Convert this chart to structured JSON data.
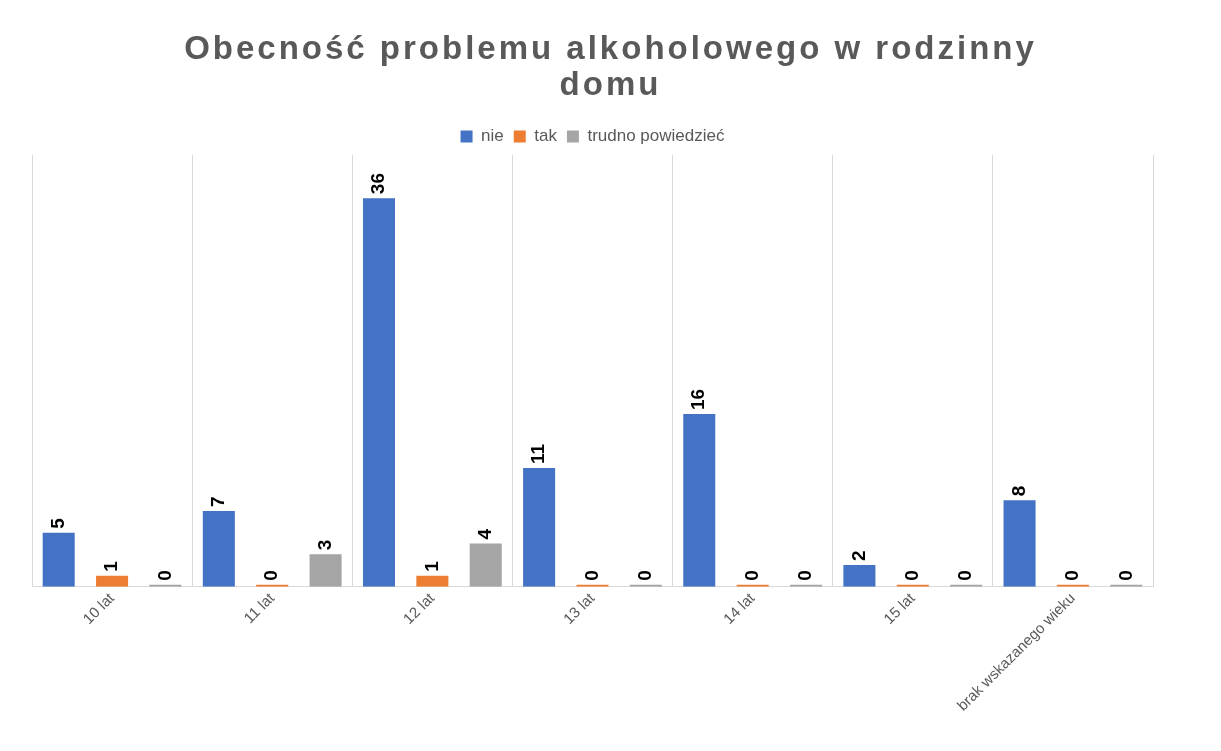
{
  "chart_data": {
    "type": "bar",
    "title": "Obecność problemu alkoholowego w rodzinny domu",
    "categories": [
      "10 lat",
      "11 lat",
      "12 lat",
      "13 lat",
      "14 lat",
      "15 lat",
      "brak wskazanego wieku"
    ],
    "series": [
      {
        "name": "nie",
        "color": "#4472c4",
        "values": [
          5,
          7,
          36,
          11,
          16,
          2,
          8
        ]
      },
      {
        "name": "tak",
        "color": "#ed7d31",
        "values": [
          1,
          0,
          1,
          0,
          0,
          0,
          0
        ]
      },
      {
        "name": "trudno powiedzieć",
        "color": "#a5a5a5",
        "values": [
          0,
          3,
          4,
          0,
          0,
          0,
          0
        ]
      }
    ],
    "data_labels": true,
    "grid": "x",
    "legend": "top",
    "tick_labels": "x"
  }
}
